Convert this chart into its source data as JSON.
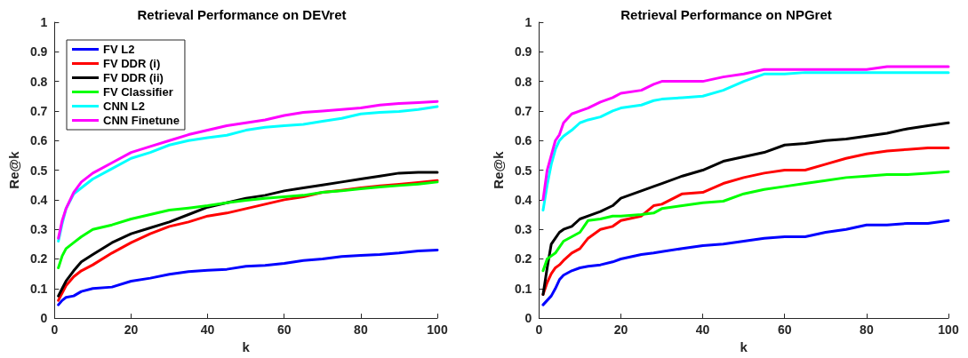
{
  "chart_data": [
    {
      "type": "line",
      "title": "Retrieval Performance on DEVret",
      "xlabel": "k",
      "ylabel": "Re@k",
      "x": [
        1,
        2,
        3,
        5,
        7,
        10,
        15,
        20,
        25,
        30,
        35,
        40,
        45,
        50,
        55,
        60,
        65,
        70,
        75,
        80,
        85,
        90,
        95,
        100
      ],
      "xlim": [
        0,
        100
      ],
      "xticks": [
        0,
        20,
        40,
        60,
        80,
        100
      ],
      "ylim": [
        0,
        1
      ],
      "yticks": [
        0,
        0.1,
        0.2,
        0.3,
        0.4,
        0.5,
        0.6,
        0.7,
        0.8,
        0.9,
        1
      ],
      "grid": false,
      "legend": "top left",
      "marker": "none",
      "line_style": "solid",
      "series": [
        {
          "name": "FV L2",
          "color": "#0000ff",
          "values": [
            0.045,
            0.06,
            0.07,
            0.075,
            0.09,
            0.1,
            0.105,
            0.125,
            0.135,
            0.148,
            0.157,
            0.162,
            0.165,
            0.175,
            0.178,
            0.185,
            0.195,
            0.2,
            0.208,
            0.212,
            0.215,
            0.22,
            0.227,
            0.23
          ]
        },
        {
          "name": "FV DDR (i)",
          "color": "#ff0000",
          "values": [
            0.06,
            0.085,
            0.11,
            0.14,
            0.16,
            0.18,
            0.22,
            0.255,
            0.285,
            0.31,
            0.325,
            0.345,
            0.355,
            0.37,
            0.385,
            0.4,
            0.41,
            0.425,
            0.432,
            0.44,
            0.447,
            0.452,
            0.458,
            0.465
          ]
        },
        {
          "name": "FV DDR (ii)",
          "color": "#000000",
          "values": [
            0.075,
            0.1,
            0.125,
            0.16,
            0.19,
            0.215,
            0.255,
            0.285,
            0.305,
            0.325,
            0.35,
            0.375,
            0.39,
            0.405,
            0.415,
            0.43,
            0.44,
            0.45,
            0.46,
            0.47,
            0.48,
            0.49,
            0.493,
            0.493
          ]
        },
        {
          "name": "FV Classifier",
          "color": "#00ff00",
          "values": [
            0.17,
            0.21,
            0.235,
            0.255,
            0.275,
            0.3,
            0.315,
            0.335,
            0.35,
            0.365,
            0.372,
            0.38,
            0.39,
            0.398,
            0.405,
            0.41,
            0.415,
            0.425,
            0.43,
            0.437,
            0.443,
            0.448,
            0.453,
            0.46
          ]
        },
        {
          "name": "CNN L2",
          "color": "#00ffff",
          "values": [
            0.26,
            0.32,
            0.37,
            0.42,
            0.44,
            0.47,
            0.505,
            0.54,
            0.56,
            0.585,
            0.6,
            0.61,
            0.618,
            0.635,
            0.645,
            0.65,
            0.655,
            0.665,
            0.675,
            0.69,
            0.695,
            0.698,
            0.705,
            0.715
          ]
        },
        {
          "name": "CNN Finetune",
          "color": "#ff00ff",
          "values": [
            0.27,
            0.33,
            0.37,
            0.425,
            0.46,
            0.49,
            0.525,
            0.56,
            0.58,
            0.6,
            0.62,
            0.635,
            0.65,
            0.66,
            0.67,
            0.685,
            0.695,
            0.7,
            0.705,
            0.71,
            0.72,
            0.725,
            0.728,
            0.732
          ]
        }
      ]
    },
    {
      "type": "line",
      "title": "Retrieval Performance on NPGret",
      "xlabel": "k",
      "ylabel": "Re@k",
      "x": [
        1,
        2,
        3,
        4,
        5,
        6,
        8,
        10,
        12,
        15,
        18,
        20,
        25,
        28,
        30,
        35,
        40,
        45,
        50,
        55,
        60,
        65,
        70,
        75,
        80,
        85,
        90,
        95,
        100
      ],
      "xlim": [
        0,
        100
      ],
      "xticks": [
        0,
        20,
        40,
        60,
        80,
        100
      ],
      "ylim": [
        0,
        1
      ],
      "yticks": [
        0,
        0.1,
        0.2,
        0.3,
        0.4,
        0.5,
        0.6,
        0.7,
        0.8,
        0.9,
        1
      ],
      "grid": false,
      "marker": "none",
      "line_style": "solid",
      "series": [
        {
          "color": "#0000ff",
          "values": [
            0.045,
            0.06,
            0.075,
            0.1,
            0.13,
            0.145,
            0.16,
            0.17,
            0.175,
            0.18,
            0.19,
            0.2,
            0.215,
            0.22,
            0.225,
            0.235,
            0.245,
            0.25,
            0.26,
            0.27,
            0.275,
            0.275,
            0.29,
            0.3,
            0.315,
            0.315,
            0.32,
            0.32,
            0.33
          ]
        },
        {
          "color": "#ff0000",
          "values": [
            0.08,
            0.12,
            0.15,
            0.17,
            0.18,
            0.195,
            0.22,
            0.235,
            0.27,
            0.3,
            0.31,
            0.33,
            0.345,
            0.38,
            0.385,
            0.42,
            0.425,
            0.455,
            0.475,
            0.49,
            0.5,
            0.5,
            0.52,
            0.54,
            0.555,
            0.565,
            0.57,
            0.575,
            0.575
          ]
        },
        {
          "color": "#000000",
          "values": [
            0.08,
            0.17,
            0.25,
            0.27,
            0.29,
            0.3,
            0.31,
            0.335,
            0.345,
            0.36,
            0.38,
            0.405,
            0.43,
            0.445,
            0.455,
            0.48,
            0.5,
            0.53,
            0.545,
            0.56,
            0.585,
            0.59,
            0.6,
            0.605,
            0.615,
            0.625,
            0.64,
            0.65,
            0.66
          ]
        },
        {
          "color": "#00ff00",
          "values": [
            0.16,
            0.2,
            0.21,
            0.22,
            0.24,
            0.26,
            0.275,
            0.29,
            0.33,
            0.335,
            0.345,
            0.345,
            0.35,
            0.355,
            0.37,
            0.38,
            0.39,
            0.395,
            0.42,
            0.435,
            0.445,
            0.455,
            0.465,
            0.475,
            0.48,
            0.485,
            0.485,
            0.49,
            0.495
          ]
        },
        {
          "color": "#00ffff",
          "values": [
            0.365,
            0.45,
            0.52,
            0.57,
            0.6,
            0.615,
            0.635,
            0.66,
            0.67,
            0.68,
            0.7,
            0.71,
            0.72,
            0.735,
            0.74,
            0.745,
            0.75,
            0.77,
            0.8,
            0.825,
            0.825,
            0.83,
            0.83,
            0.83,
            0.83,
            0.83,
            0.83,
            0.83,
            0.83
          ]
        },
        {
          "color": "#ff00ff",
          "values": [
            0.4,
            0.5,
            0.55,
            0.6,
            0.62,
            0.66,
            0.69,
            0.7,
            0.71,
            0.73,
            0.745,
            0.76,
            0.77,
            0.79,
            0.8,
            0.8,
            0.8,
            0.815,
            0.825,
            0.84,
            0.84,
            0.84,
            0.84,
            0.84,
            0.84,
            0.85,
            0.85,
            0.85,
            0.85
          ]
        }
      ]
    }
  ]
}
